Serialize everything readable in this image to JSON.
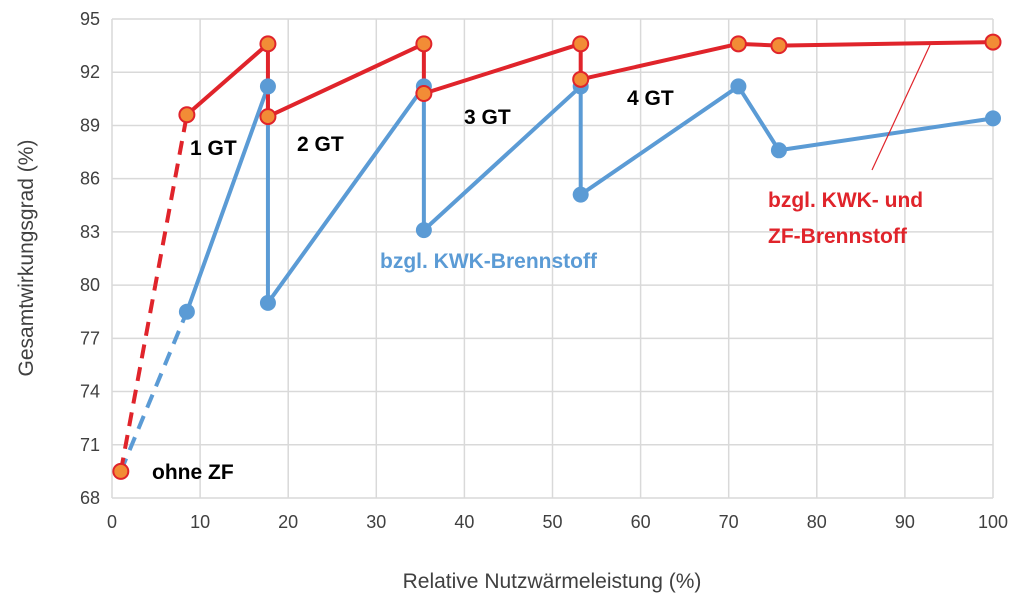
{
  "chart_data": {
    "type": "line",
    "title": "",
    "xlabel": "Relative Nutzwärmeleistung (%)",
    "ylabel": "Gesamtwirkungsgrad (%)",
    "xlim": [
      0,
      100
    ],
    "ylim": [
      68,
      95
    ],
    "xticks": [
      0,
      10,
      20,
      30,
      40,
      50,
      60,
      70,
      80,
      90,
      100
    ],
    "yticks": [
      68,
      71,
      74,
      77,
      80,
      83,
      86,
      89,
      92,
      95
    ],
    "grid": true,
    "colors": {
      "red": "#e0242b",
      "marker_fill": "#f28c36",
      "blue": "#5b9bd5",
      "grid": "#d9d9d9"
    },
    "series": [
      {
        "name": "bzgl. KWK- und ZF-Brennstoff",
        "color": "#e0242b",
        "dashed_segment": [
          [
            1.0,
            69.5
          ],
          [
            8.5,
            89.6
          ]
        ],
        "points": [
          [
            8.5,
            89.6
          ],
          [
            17.7,
            93.6
          ],
          [
            17.7,
            89.5
          ],
          [
            35.4,
            93.6
          ],
          [
            35.4,
            90.8
          ],
          [
            53.2,
            93.6
          ],
          [
            53.2,
            91.6
          ],
          [
            71.1,
            93.6
          ],
          [
            75.7,
            93.5
          ],
          [
            100,
            93.7
          ]
        ],
        "extra_points": [
          [
            1.0,
            69.5
          ]
        ]
      },
      {
        "name": "bzgl. KWK-Brennstoff",
        "color": "#5b9bd5",
        "dashed_segment": [
          [
            1.0,
            69.5
          ],
          [
            8.5,
            78.5
          ]
        ],
        "points": [
          [
            8.5,
            78.5
          ],
          [
            17.7,
            91.2
          ],
          [
            17.7,
            79.0
          ],
          [
            35.4,
            91.2
          ],
          [
            35.4,
            83.1
          ],
          [
            53.2,
            91.2
          ],
          [
            53.2,
            85.1
          ],
          [
            71.1,
            91.2
          ],
          [
            75.7,
            87.6
          ],
          [
            100,
            89.4
          ]
        ]
      }
    ],
    "annotations": [
      "1 GT",
      "2 GT",
      "3 GT",
      "4 GT",
      "ohne ZF",
      "bzgl. KWK-Brennstoff",
      "bzgl. KWK- und",
      "ZF-Brennstoff"
    ]
  }
}
